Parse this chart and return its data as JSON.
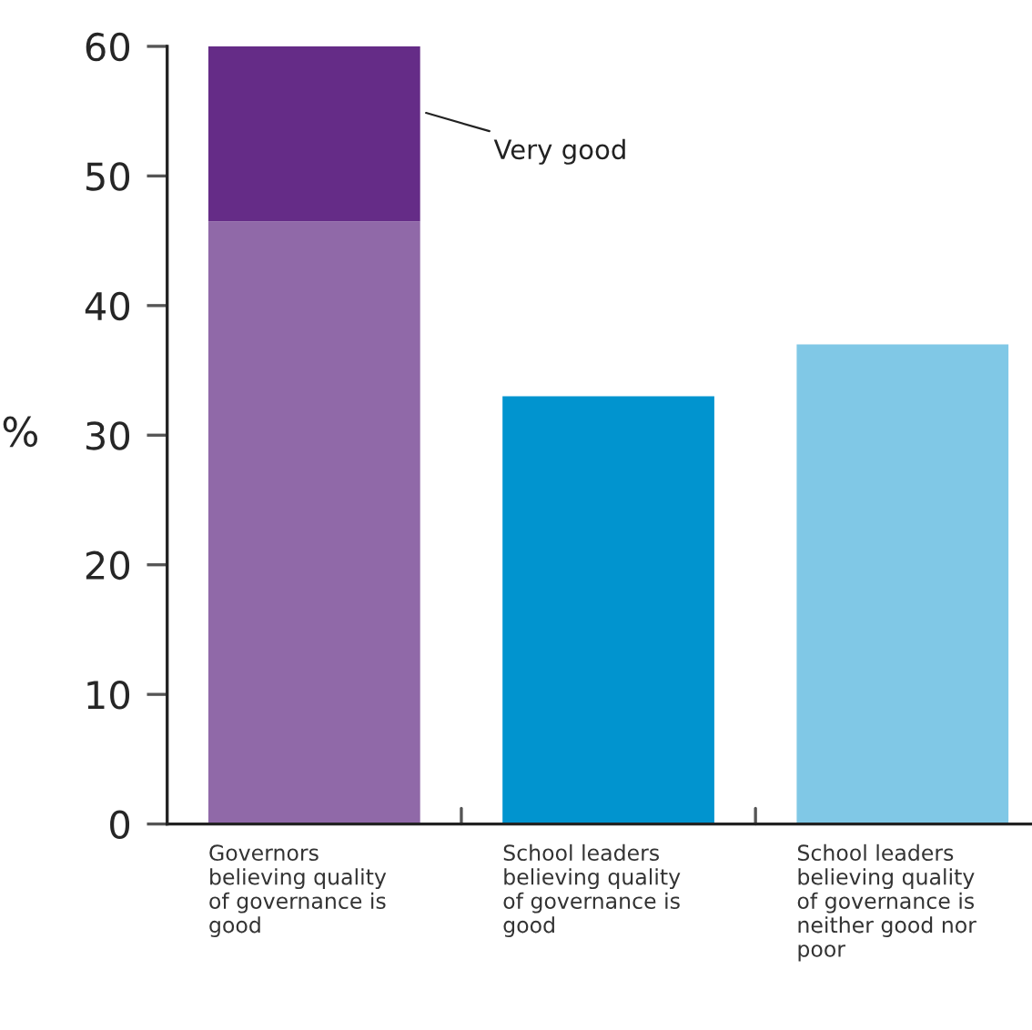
{
  "chart_data": {
    "type": "bar",
    "stacked": true,
    "ylabel": "%",
    "categories": [
      "Governors\nbelieving quality\nof governance is\ngood",
      "School leaders\nbelieving quality\nof governance is\ngood",
      "School leaders\nbelieving quality\nof governance is\nneither good nor\npoor"
    ],
    "series": [
      {
        "colors": [
          "#9069a8",
          "#0194cf",
          "#80c8e6"
        ],
        "values": [
          46.5,
          33,
          37
        ]
      },
      {
        "name": "Very good",
        "color": "#652c87",
        "values": [
          13.5,
          null,
          null
        ]
      }
    ],
    "ylim": [
      0,
      60
    ],
    "yticks": [
      0,
      10,
      20,
      30,
      40,
      50,
      60
    ],
    "grid": false,
    "legend": false
  }
}
